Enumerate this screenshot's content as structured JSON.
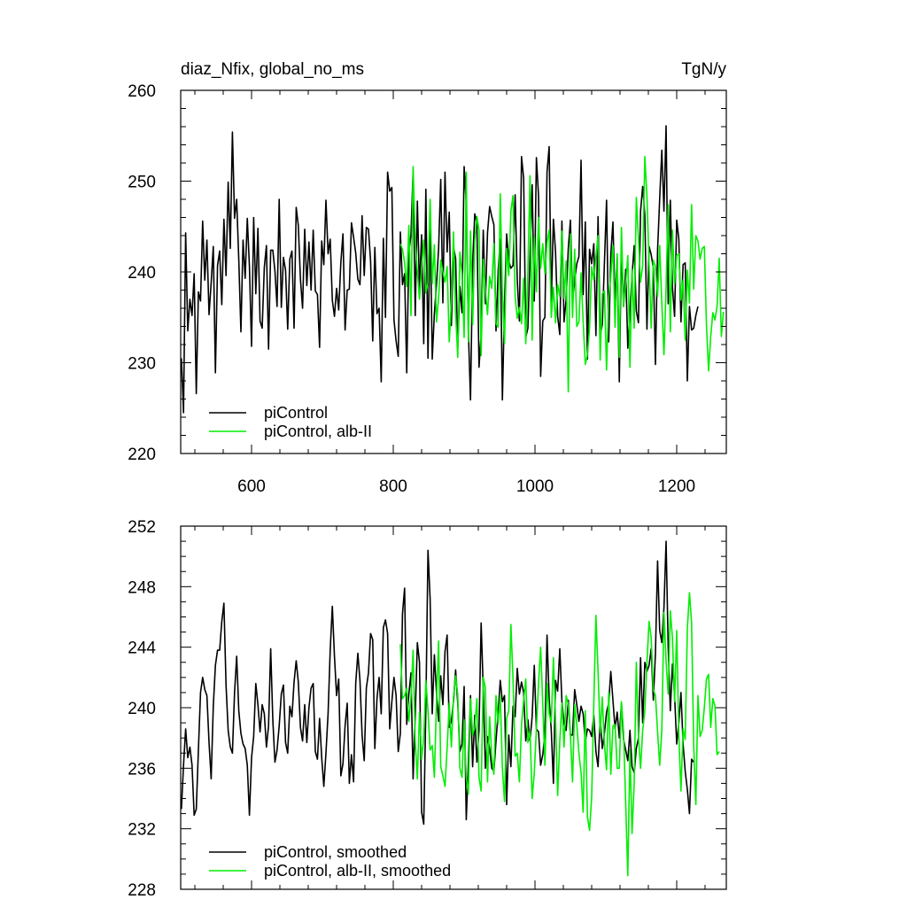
{
  "title_left": "diaz_Nfix, global_no_ms",
  "title_right": "TgN/y",
  "colors": {
    "piControl": "#000000",
    "albII": "#00ee00"
  },
  "chart_data": [
    {
      "type": "line",
      "xlim": [
        500,
        1270
      ],
      "ylim": [
        220,
        260
      ],
      "x_ticks": [
        600,
        800,
        1000,
        1200
      ],
      "x_tick_labels": [
        "600",
        "800",
        "1000",
        "1200"
      ],
      "y_ticks": [
        220,
        230,
        240,
        250,
        260
      ],
      "y_tick_labels": [
        "220",
        "230",
        "240",
        "250",
        "260"
      ],
      "legend_position": "bottom-left",
      "series": [
        {
          "name": "piControl",
          "color": "#000000",
          "x_start": 501,
          "x_step": 3,
          "values": [
            230.5,
            224.5,
            244.3,
            233.5,
            237.0,
            235.2,
            239.8,
            226.6,
            237.8,
            236.8,
            245.6,
            239.1,
            243.5,
            235.3,
            238.8,
            242.8,
            228.9,
            240.7,
            242.3,
            236.4,
            245.8,
            239.6,
            249.9,
            242.6,
            255.4,
            245.9,
            248.0,
            241.3,
            233.4,
            243.5,
            239.3,
            245.9,
            240.6,
            231.8,
            246.0,
            237.6,
            244.8,
            234.6,
            233.8,
            240.5,
            242.9,
            231.5,
            242.4,
            242.4,
            240.1,
            236.2,
            248.0,
            236.1,
            241.6,
            240.2,
            233.7,
            241.4,
            242.3,
            233.8,
            247.1,
            245.1,
            239.2,
            236.0,
            244.7,
            238.5,
            243.3,
            238.0,
            244.6,
            237.9,
            237.5,
            231.7,
            243.4,
            240.8,
            247.9,
            242.0,
            243.6,
            236.9,
            235.1,
            238.2,
            235.8,
            241.0,
            244.2,
            233.6,
            238.0,
            238.1,
            245.4,
            243.8,
            242.1,
            239.2,
            238.6,
            246.2,
            239.6,
            244.9,
            244.7,
            241.2,
            232.4,
            242.7,
            235.4,
            236.0,
            227.9,
            243.7,
            235.0,
            251.0,
            248.9,
            249.3,
            234.7,
            232.4,
            230.7,
            244.4,
            238.6,
            239.8,
            228.9,
            242.2,
            244.1,
            251.1,
            235.2,
            247.8,
            238.0,
            244.1,
            232.1,
            249.1,
            230.5,
            246.3,
            230.4,
            235.4,
            238.6,
            242.6,
            250.2,
            236.6,
            251.0,
            242.2,
            246.6,
            234.1,
            242.7,
            241.5,
            231.7,
            238.4,
            235.5,
            251.6,
            247.5,
            233.5,
            225.9,
            241.0,
            246.4,
            245.4,
            229.5,
            233.1,
            244.6,
            236.5,
            244.3,
            247.2,
            246.1,
            245.2,
            233.5,
            240.1,
            243.6,
            225.9,
            236.4,
            244.2,
            241.2,
            240.4,
            240.7,
            248.5,
            239.1,
            234.6,
            252.7,
            250.3,
            232.8,
            233.8,
            241.6,
            249.6,
            236.8,
            252.6,
            248.4,
            228.5,
            234.6,
            235.0,
            251.0,
            253.8,
            236.6,
            245.8,
            242.2,
            235.1,
            233.1,
            245.6,
            234.5,
            237.0,
            242.6,
            245.7,
            236.9,
            239.0,
            240.9,
            241.7,
            252.3,
            237.5,
            245.5,
            230.4,
            242.5,
            240.9,
            243.1,
            233.0,
            246.1,
            233.0,
            234.2,
            241.0,
            247.9,
            232.3,
            241.9,
            245.5,
            236.4,
            241.7,
            227.9,
            242.7,
            236.2,
            240.3,
            231.6,
            235.7,
            239.6,
            242.9,
            235.7,
            234.4,
            246.7,
            249.4,
            246.3,
            233.7,
            242.8,
            241.9,
            240.4,
            229.8,
            242.4,
            248.1,
            253.4,
            246.7,
            256.1,
            236.5,
            247.9,
            238.3,
            235.1,
            245.7,
            243.6,
            234.5,
            240.8,
            241.0,
            228.0,
            236.2,
            233.6,
            233.8,
            235.2,
            236.2
          ]
        },
        {
          "name": "piControl, alb-II",
          "color": "#00ee00",
          "x_start": 810,
          "x_step": 3,
          "values": [
            243.1,
            242.5,
            241.0,
            238.4,
            245.1,
            235.2,
            251.6,
            243.5,
            240.0,
            237.0,
            240.4,
            243.5,
            237.7,
            238.8,
            248.0,
            238.7,
            243.0,
            234.5,
            237.1,
            241.3,
            240.0,
            238.9,
            240.6,
            232.3,
            236.7,
            244.4,
            235.5,
            230.6,
            242.2,
            239.8,
            232.8,
            251.0,
            232.3,
            244.5,
            234.2,
            243.5,
            246.1,
            244.6,
            230.8,
            241.4,
            238.1,
            235.3,
            239.5,
            238.2,
            243.1,
            234.3,
            233.9,
            248.6,
            237.8,
            232.1,
            242.6,
            239.6,
            246.7,
            248.4,
            237.3,
            234.9,
            236.1,
            234.3,
            239.3,
            232.1,
            240.2,
            250.6,
            232.5,
            243.9,
            237.8,
            246.0,
            240.4,
            243.1,
            239.8,
            243.2,
            244.6,
            235.0,
            238.3,
            234.4,
            238.6,
            237.3,
            244.5,
            237.1,
            241.2,
            226.8,
            244.2,
            235.0,
            242.5,
            234.0,
            234.5,
            239.9,
            234.5,
            229.8,
            230.9,
            233.8,
            240.6,
            239.1,
            241.7,
            244.0,
            230.3,
            237.6,
            237.9,
            229.2,
            237.2,
            239.5,
            242.9,
            233.9,
            242.0,
            230.6,
            244.9,
            236.2,
            238.7,
            241.8,
            229.5,
            240.3,
            233.8,
            248.2,
            243.7,
            238.9,
            240.7,
            252.7,
            248.3,
            240.9,
            233.8,
            241.3,
            240.6,
            237.3,
            242.9,
            236.5,
            230.9,
            238.2,
            247.4,
            233.4,
            244.6,
            238.7,
            241.8,
            242.0,
            236.9,
            239.1,
            232.5,
            240.2,
            236.6,
            247.4,
            238.1,
            244.0,
            243.4,
            241.4,
            242.6,
            242.8,
            234.2,
            229.1,
            232.9,
            235.5,
            234.7,
            236.2,
            241.5,
            232.9,
            235.6
          ]
        }
      ]
    },
    {
      "type": "line",
      "xlim": [
        500,
        1270
      ],
      "ylim": [
        228,
        252
      ],
      "x_ticks": [
        600,
        800,
        1000,
        1200
      ],
      "y_ticks": [
        228,
        232,
        236,
        240,
        244,
        248,
        252
      ],
      "y_tick_labels": [
        "228",
        "232",
        "236",
        "240",
        "244",
        "248",
        "252"
      ],
      "legend_position": "bottom-left",
      "series": [
        {
          "name": "piControl, smoothed",
          "color": "#000000",
          "x_start": 501,
          "x_step": 3,
          "values": [
            233.3,
            236.2,
            238.6,
            236.7,
            237.4,
            236.2,
            232.9,
            233.3,
            237.2,
            241.0,
            242.0,
            241.2,
            240.8,
            237.7,
            235.3,
            240.1,
            242.8,
            243.8,
            243.8,
            245.7,
            246.9,
            241.5,
            238.5,
            237.4,
            237.0,
            241.0,
            243.4,
            239.8,
            238.3,
            237.6,
            237.3,
            236.2,
            232.9,
            236.7,
            238.1,
            241.6,
            240.2,
            238.4,
            240.2,
            239.6,
            237.4,
            238.8,
            243.9,
            239.2,
            236.4,
            237.2,
            238.8,
            240.9,
            241.5,
            237.7,
            237.0,
            240.1,
            239.4,
            241.7,
            243.1,
            241.7,
            238.7,
            237.8,
            240.2,
            237.7,
            240.0,
            241.3,
            241.6,
            237.1,
            236.6,
            239.3,
            236.7,
            234.8,
            237.0,
            239.6,
            243.8,
            246.7,
            243.4,
            240.8,
            241.9,
            235.5,
            236.3,
            238.8,
            240.3,
            235.0,
            236.9,
            235.1,
            241.6,
            243.6,
            241.8,
            238.2,
            236.5,
            241.3,
            242.3,
            244.9,
            244.5,
            237.3,
            240.6,
            242.0,
            239.6,
            245.3,
            245.8,
            244.9,
            238.6,
            240.4,
            242.0,
            240.8,
            237.1,
            238.3,
            246.2,
            247.9,
            238.9,
            240.9,
            242.3,
            235.3,
            239.5,
            244.3,
            243.0,
            233.1,
            232.3,
            240.0,
            250.4,
            247.2,
            239.6,
            243.5,
            241.0,
            239.1,
            242.1,
            240.2,
            243.7,
            244.8,
            238.7,
            239.1,
            240.4,
            242.5,
            240.3,
            237.1,
            237.6,
            241.4,
            232.6,
            236.3,
            240.8,
            236.1,
            239.5,
            236.4,
            238.5,
            245.6,
            241.2,
            236.0,
            238.1,
            237.3,
            236.0,
            235.8,
            237.8,
            239.7,
            241.8,
            240.4,
            240.8,
            233.6,
            238.2,
            236.1,
            240.1,
            239.4,
            242.6,
            240.9,
            241.7,
            241.0,
            237.8,
            239.2,
            237.8,
            239.4,
            242.8,
            238.6,
            238.4,
            236.2,
            236.9,
            238.3,
            244.8,
            240.6,
            238.5,
            235.0,
            241.8,
            241.1,
            243.9,
            240.4,
            239.0,
            238.5,
            240.5,
            238.2,
            238.2,
            241.2,
            240.2,
            239.1,
            240.1,
            239.6,
            237.7,
            238.6,
            238.5,
            238.1,
            239.5,
            237.1,
            236.1,
            239.3,
            237.3,
            238.3,
            239.7,
            240.3,
            242.4,
            240.5,
            238.6,
            239.7,
            238.0,
            240.3,
            237.9,
            237.2,
            236.5,
            238.5,
            236.1,
            235.7,
            237.3,
            238.0,
            243.3,
            239.0,
            243.0,
            242.4,
            242.8,
            243.9,
            240.5,
            243.6,
            249.7,
            245.1,
            244.3,
            246.6,
            251.0,
            244.0,
            239.8,
            242.9,
            240.8,
            237.6,
            239.0,
            241.0,
            237.6,
            235.8,
            234.6,
            233.0,
            236.6,
            236.4
          ]
        },
        {
          "name": "piControl, alb-II, smoothed",
          "color": "#00ee00",
          "x_start": 810,
          "x_step": 3,
          "values": [
            244.2,
            240.6,
            240.8,
            241.3,
            239.1,
            240.7,
            243.8,
            237.8,
            235.3,
            239.7,
            236.6,
            238.0,
            241.8,
            239.8,
            237.2,
            237.5,
            235.4,
            240.4,
            244.4,
            236.1,
            235.5,
            234.8,
            237.3,
            240.3,
            237.4,
            240.7,
            242.1,
            240.9,
            236.0,
            235.4,
            239.2,
            235.4,
            234.3,
            240.6,
            238.2,
            238.7,
            240.6,
            235.4,
            234.5,
            242.0,
            241.3,
            235.1,
            239.4,
            236.8,
            235.6,
            240.8,
            238.9,
            240.8,
            236.0,
            233.8,
            239.3,
            239.8,
            245.5,
            241.9,
            236.8,
            237.0,
            235.1,
            238.9,
            240.5,
            241.9,
            237.7,
            238.5,
            234.0,
            235.7,
            238.6,
            241.6,
            244.0,
            240.2,
            236.2,
            241.6,
            239.6,
            239.0,
            243.3,
            239.3,
            234.2,
            237.8,
            240.3,
            237.4,
            240.8,
            240.2,
            238.2,
            235.1,
            240.2,
            238.9,
            237.0,
            235.7,
            233.1,
            239.8,
            232.8,
            231.9,
            234.1,
            240.3,
            246.1,
            242.4,
            238.3,
            240.7,
            237.6,
            235.9,
            241.0,
            235.6,
            238.8,
            238.9,
            236.0,
            236.0,
            240.4,
            238.4,
            233.7,
            228.9,
            237.2,
            231.7,
            235.0,
            243.0,
            238.1,
            236.0,
            238.5,
            239.8,
            243.0,
            245.7,
            244.6,
            241.2,
            240.8,
            238.4,
            236.2,
            238.5,
            246.3,
            243.1,
            240.9,
            246.4,
            244.6,
            240.4,
            245.1,
            238.2,
            234.5,
            238.6,
            237.9,
            245.2,
            247.6,
            245.6,
            237.5,
            233.6,
            240.8,
            238.1,
            238.5,
            240.0,
            241.9,
            242.2,
            238.7,
            240.6,
            240.1,
            236.9,
            237.1
          ]
        }
      ]
    }
  ],
  "legends": [
    {
      "items": [
        {
          "label": "piControl",
          "color": "#000000"
        },
        {
          "label": "piControl, alb-II",
          "color": "#00ee00"
        }
      ]
    },
    {
      "items": [
        {
          "label": "piControl, smoothed",
          "color": "#000000"
        },
        {
          "label": "piControl, alb-II, smoothed",
          "color": "#00ee00"
        }
      ]
    }
  ]
}
